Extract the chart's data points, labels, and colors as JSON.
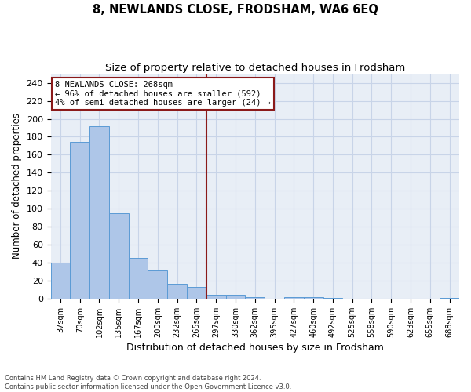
{
  "title": "8, NEWLANDS CLOSE, FRODSHAM, WA6 6EQ",
  "subtitle": "Size of property relative to detached houses in Frodsham",
  "xlabel": "Distribution of detached houses by size in Frodsham",
  "ylabel": "Number of detached properties",
  "categories": [
    "37sqm",
    "70sqm",
    "102sqm",
    "135sqm",
    "167sqm",
    "200sqm",
    "232sqm",
    "265sqm",
    "297sqm",
    "330sqm",
    "362sqm",
    "395sqm",
    "427sqm",
    "460sqm",
    "492sqm",
    "525sqm",
    "558sqm",
    "590sqm",
    "623sqm",
    "655sqm",
    "688sqm"
  ],
  "values": [
    40,
    174,
    192,
    95,
    45,
    31,
    16,
    13,
    4,
    4,
    2,
    0,
    2,
    2,
    1,
    0,
    0,
    0,
    0,
    0,
    1
  ],
  "bar_color": "#aec6e8",
  "bar_edge_color": "#5b9bd5",
  "grid_color": "#c8d4e8",
  "bg_color": "#e8eef6",
  "vline_color": "#8b1a1a",
  "annotation_box_text": "8 NEWLANDS CLOSE: 268sqm\n← 96% of detached houses are smaller (592)\n4% of semi-detached houses are larger (24) →",
  "annotation_box_color": "#8b1a1a",
  "annotation_text_fontsize": 7.5,
  "title_fontsize": 10.5,
  "subtitle_fontsize": 9.5,
  "ylabel_fontsize": 8.5,
  "xlabel_fontsize": 9,
  "footer_text": "Contains HM Land Registry data © Crown copyright and database right 2024.\nContains public sector information licensed under the Open Government Licence v3.0.",
  "ylim": [
    0,
    250
  ],
  "yticks": [
    0,
    20,
    40,
    60,
    80,
    100,
    120,
    140,
    160,
    180,
    200,
    220,
    240
  ],
  "vline_x_index": 7.5
}
